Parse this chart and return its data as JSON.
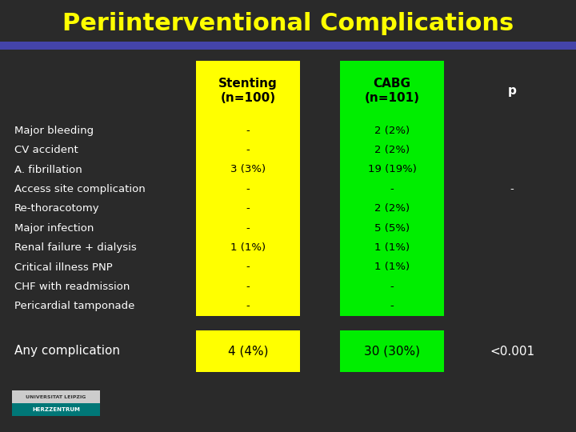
{
  "title": "Periinterventional Complications",
  "title_color": "#FFFF00",
  "bg_color": "#2a2a2a",
  "col1_header": "Stenting\n(n=100)",
  "col2_header": "CABG\n(n=101)",
  "col3_header": "p",
  "col1_color": "#FFFF00",
  "col2_color": "#00EE00",
  "rows": [
    [
      "Major bleeding",
      "-",
      "2 (2%)",
      ""
    ],
    [
      "CV accident",
      "-",
      "2 (2%)",
      ""
    ],
    [
      "A. fibrillation",
      "3 (3%)",
      "19 (19%)",
      ""
    ],
    [
      "Access site complication",
      "-",
      "-",
      "-"
    ],
    [
      "Re-thoracotomy",
      "-",
      "2 (2%)",
      ""
    ],
    [
      "Major infection",
      "-",
      "5 (5%)",
      ""
    ],
    [
      "Renal failure + dialysis",
      "1 (1%)",
      "1 (1%)",
      ""
    ],
    [
      "Critical illness PNP",
      "-",
      "1 (1%)",
      ""
    ],
    [
      "CHF with readmission",
      "-",
      "-",
      ""
    ],
    [
      "Pericardial tamponade",
      "-",
      "-",
      ""
    ]
  ],
  "footer_row": [
    "Any complication",
    "4 (4%)",
    "30 (30%)",
    "<0.001"
  ],
  "row_label_color": "#FFFFFF",
  "cell_text_color": "#000000",
  "footer_label_color": "#FFFFFF",
  "footer_p_color": "#FFFFFF",
  "p_col_color": "#FFFFFF",
  "title_bar_color": "#4444AA",
  "univ_text": "UNIVERSITAT LEIPZIG\nHERZZENTRUM",
  "univ_bg": "#006666"
}
